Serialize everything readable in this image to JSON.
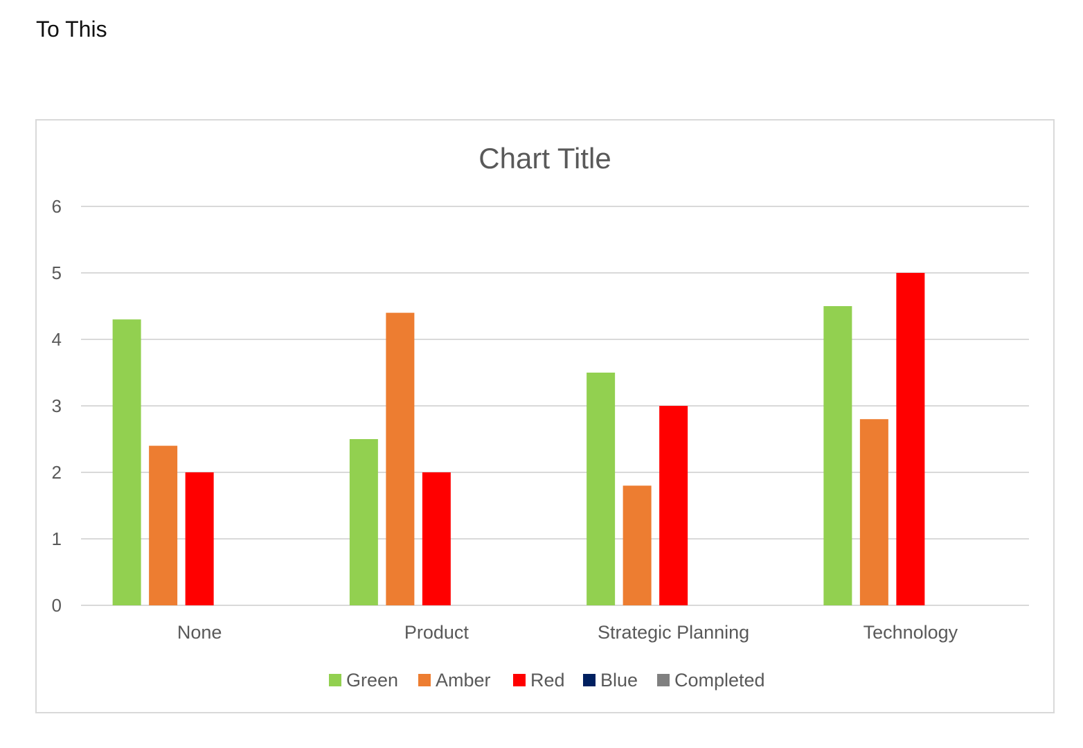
{
  "page": {
    "heading": "To This"
  },
  "chart_data": {
    "type": "bar",
    "title": "Chart Title",
    "categories": [
      "None",
      "Product",
      "Strategic Planning",
      "Technology"
    ],
    "series": [
      {
        "name": "Green",
        "color": "#92d050",
        "values": [
          4.3,
          2.5,
          3.5,
          4.5
        ]
      },
      {
        "name": "Amber",
        "color": "#ed7d31",
        "values": [
          2.4,
          4.4,
          1.8,
          2.8
        ]
      },
      {
        "name": "Red",
        "color": "#ff0000",
        "values": [
          2,
          2,
          3,
          5
        ]
      },
      {
        "name": "Blue",
        "color": "#002060",
        "values": [
          0,
          0,
          0,
          0
        ]
      },
      {
        "name": "Completed",
        "color": "#808080",
        "values": [
          0,
          0,
          0,
          0
        ]
      }
    ],
    "ylim": [
      0,
      6
    ],
    "yticks": [
      0,
      1,
      2,
      3,
      4,
      5,
      6
    ],
    "grid": true,
    "legend": "bottom",
    "xlabel": "",
    "ylabel": ""
  }
}
